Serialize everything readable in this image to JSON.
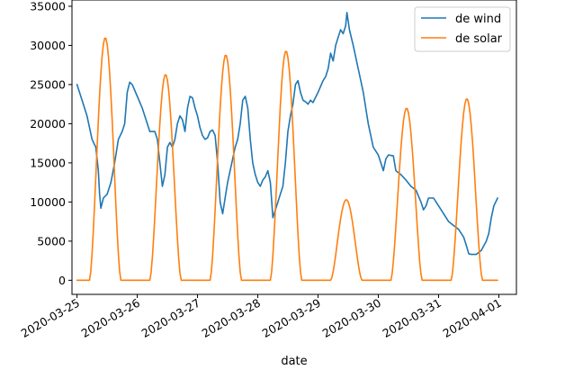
{
  "chart_data": {
    "type": "line",
    "xlabel": "date",
    "ylabel": "",
    "title": "",
    "grid": false,
    "legend_position": "top-right",
    "x_range": [
      "2020-03-24T22:00",
      "2020-04-01T07:00"
    ],
    "ylim": [
      -1800,
      35800
    ],
    "x_ticks": [
      "2020-03-25",
      "2020-03-26",
      "2020-03-27",
      "2020-03-28",
      "2020-03-29",
      "2020-03-30",
      "2020-03-31",
      "2020-04-01"
    ],
    "y_ticks": [
      0,
      5000,
      10000,
      15000,
      20000,
      25000,
      30000,
      35000
    ],
    "series": [
      {
        "name": "de wind",
        "color": "#1f77b4",
        "points": [
          [
            "2020-03-25T00:00",
            25000
          ],
          [
            "2020-03-25T02:00",
            23000
          ],
          [
            "2020-03-25T04:00",
            21000
          ],
          [
            "2020-03-25T06:00",
            18000
          ],
          [
            "2020-03-25T07:30",
            17000
          ],
          [
            "2020-03-25T08:30",
            14000
          ],
          [
            "2020-03-25T09:00",
            11000
          ],
          [
            "2020-03-25T09:30",
            9200
          ],
          [
            "2020-03-25T10:30",
            10500
          ],
          [
            "2020-03-25T12:00",
            11000
          ],
          [
            "2020-03-25T13:30",
            12500
          ],
          [
            "2020-03-25T15:00",
            15000
          ],
          [
            "2020-03-25T16:30",
            18000
          ],
          [
            "2020-03-25T18:00",
            19000
          ],
          [
            "2020-03-25T19:00",
            20000
          ],
          [
            "2020-03-25T20:00",
            24000
          ],
          [
            "2020-03-25T21:00",
            25300
          ],
          [
            "2020-03-25T22:00",
            25000
          ],
          [
            "2020-03-26T00:00",
            23500
          ],
          [
            "2020-03-26T02:00",
            22000
          ],
          [
            "2020-03-26T04:00",
            20000
          ],
          [
            "2020-03-26T05:00",
            19000
          ],
          [
            "2020-03-26T07:00",
            19000
          ],
          [
            "2020-03-26T08:00",
            18000
          ],
          [
            "2020-03-26T09:00",
            15000
          ],
          [
            "2020-03-26T10:00",
            12000
          ],
          [
            "2020-03-26T11:00",
            13500
          ],
          [
            "2020-03-26T12:00",
            17000
          ],
          [
            "2020-03-26T13:00",
            17600
          ],
          [
            "2020-03-26T14:00",
            17000
          ],
          [
            "2020-03-26T15:00",
            18000
          ],
          [
            "2020-03-26T16:00",
            20000
          ],
          [
            "2020-03-26T17:00",
            21000
          ],
          [
            "2020-03-26T18:00",
            20500
          ],
          [
            "2020-03-26T19:00",
            19000
          ],
          [
            "2020-03-26T20:00",
            22000
          ],
          [
            "2020-03-26T21:00",
            23500
          ],
          [
            "2020-03-26T22:00",
            23300
          ],
          [
            "2020-03-26T23:00",
            22000
          ],
          [
            "2020-03-27T00:00",
            21000
          ],
          [
            "2020-03-27T01:00",
            19500
          ],
          [
            "2020-03-27T02:00",
            18500
          ],
          [
            "2020-03-27T03:00",
            18000
          ],
          [
            "2020-03-27T04:00",
            18200
          ],
          [
            "2020-03-27T05:00",
            19000
          ],
          [
            "2020-03-27T06:00",
            19200
          ],
          [
            "2020-03-27T07:00",
            18500
          ],
          [
            "2020-03-27T08:00",
            15000
          ],
          [
            "2020-03-27T09:00",
            10000
          ],
          [
            "2020-03-27T10:00",
            8500
          ],
          [
            "2020-03-27T11:00",
            10500
          ],
          [
            "2020-03-27T12:00",
            12500
          ],
          [
            "2020-03-27T13:00",
            14000
          ],
          [
            "2020-03-27T14:00",
            15500
          ],
          [
            "2020-03-27T15:00",
            17000
          ],
          [
            "2020-03-27T16:00",
            18000
          ],
          [
            "2020-03-27T17:00",
            20000
          ],
          [
            "2020-03-27T18:00",
            23000
          ],
          [
            "2020-03-27T19:00",
            23500
          ],
          [
            "2020-03-27T20:00",
            22000
          ],
          [
            "2020-03-27T21:00",
            18000
          ],
          [
            "2020-03-27T22:00",
            15000
          ],
          [
            "2020-03-27T23:00",
            13500
          ],
          [
            "2020-03-28T00:00",
            12500
          ],
          [
            "2020-03-28T01:00",
            12000
          ],
          [
            "2020-03-28T02:00",
            12800
          ],
          [
            "2020-03-28T03:00",
            13200
          ],
          [
            "2020-03-28T04:00",
            14000
          ],
          [
            "2020-03-28T05:00",
            12500
          ],
          [
            "2020-03-28T06:00",
            8000
          ],
          [
            "2020-03-28T07:00",
            9000
          ],
          [
            "2020-03-28T08:00",
            10000
          ],
          [
            "2020-03-28T09:00",
            11000
          ],
          [
            "2020-03-28T10:00",
            12000
          ],
          [
            "2020-03-28T11:00",
            15000
          ],
          [
            "2020-03-28T12:00",
            19000
          ],
          [
            "2020-03-28T13:00",
            21000
          ],
          [
            "2020-03-28T14:00",
            22500
          ],
          [
            "2020-03-28T15:00",
            25000
          ],
          [
            "2020-03-28T16:00",
            25500
          ],
          [
            "2020-03-28T17:00",
            24000
          ],
          [
            "2020-03-28T18:00",
            23000
          ],
          [
            "2020-03-28T19:00",
            22800
          ],
          [
            "2020-03-28T20:00",
            22500
          ],
          [
            "2020-03-28T21:00",
            23000
          ],
          [
            "2020-03-28T22:00",
            22700
          ],
          [
            "2020-03-29T00:00",
            24000
          ],
          [
            "2020-03-29T02:00",
            25500
          ],
          [
            "2020-03-29T03:00",
            26000
          ],
          [
            "2020-03-29T04:00",
            27000
          ],
          [
            "2020-03-29T05:00",
            29000
          ],
          [
            "2020-03-29T06:00",
            28000
          ],
          [
            "2020-03-29T07:00",
            30000
          ],
          [
            "2020-03-29T08:00",
            31000
          ],
          [
            "2020-03-29T09:00",
            32000
          ],
          [
            "2020-03-29T10:00",
            31500
          ],
          [
            "2020-03-29T11:00",
            32500
          ],
          [
            "2020-03-29T11:30",
            34200
          ],
          [
            "2020-03-29T12:30",
            32000
          ],
          [
            "2020-03-29T14:00",
            30000
          ],
          [
            "2020-03-29T16:00",
            27000
          ],
          [
            "2020-03-29T18:00",
            24000
          ],
          [
            "2020-03-29T20:00",
            20000
          ],
          [
            "2020-03-29T22:00",
            17000
          ],
          [
            "2020-03-30T00:00",
            16000
          ],
          [
            "2020-03-30T01:00",
            15000
          ],
          [
            "2020-03-30T02:00",
            14000
          ],
          [
            "2020-03-30T03:00",
            15500
          ],
          [
            "2020-03-30T04:00",
            16000
          ],
          [
            "2020-03-30T06:00",
            15900
          ],
          [
            "2020-03-30T07:00",
            14000
          ],
          [
            "2020-03-30T09:00",
            13500
          ],
          [
            "2020-03-30T11:00",
            12800
          ],
          [
            "2020-03-30T13:00",
            12000
          ],
          [
            "2020-03-30T15:00",
            11500
          ],
          [
            "2020-03-30T17:00",
            10000
          ],
          [
            "2020-03-30T18:00",
            9000
          ],
          [
            "2020-03-30T19:00",
            9500
          ],
          [
            "2020-03-30T20:00",
            10500
          ],
          [
            "2020-03-30T22:00",
            10500
          ],
          [
            "2020-03-31T00:00",
            9500
          ],
          [
            "2020-03-31T02:00",
            8500
          ],
          [
            "2020-03-31T04:00",
            7500
          ],
          [
            "2020-03-31T06:00",
            7000
          ],
          [
            "2020-03-31T08:00",
            6500
          ],
          [
            "2020-03-31T10:00",
            5500
          ],
          [
            "2020-03-31T11:00",
            4500
          ],
          [
            "2020-03-31T12:00",
            3400
          ],
          [
            "2020-03-31T13:00",
            3300
          ],
          [
            "2020-03-31T15:00",
            3300
          ],
          [
            "2020-03-31T17:00",
            3800
          ],
          [
            "2020-03-31T19:00",
            5000
          ],
          [
            "2020-03-31T20:00",
            6000
          ],
          [
            "2020-03-31T21:00",
            8000
          ],
          [
            "2020-03-31T22:00",
            9500
          ],
          [
            "2020-03-31T23:30",
            10500
          ]
        ]
      },
      {
        "name": "de solar",
        "color": "#ff7f0e",
        "peaks": [
          [
            "2020-03-25",
            31000
          ],
          [
            "2020-03-26",
            26300
          ],
          [
            "2020-03-27",
            28800
          ],
          [
            "2020-03-28",
            29300
          ],
          [
            "2020-03-29",
            10300
          ],
          [
            "2020-03-30",
            22000
          ],
          [
            "2020-03-31",
            23200
          ]
        ],
        "start": "2020-03-25T00:00",
        "end": "2020-03-31T23:30"
      }
    ]
  }
}
